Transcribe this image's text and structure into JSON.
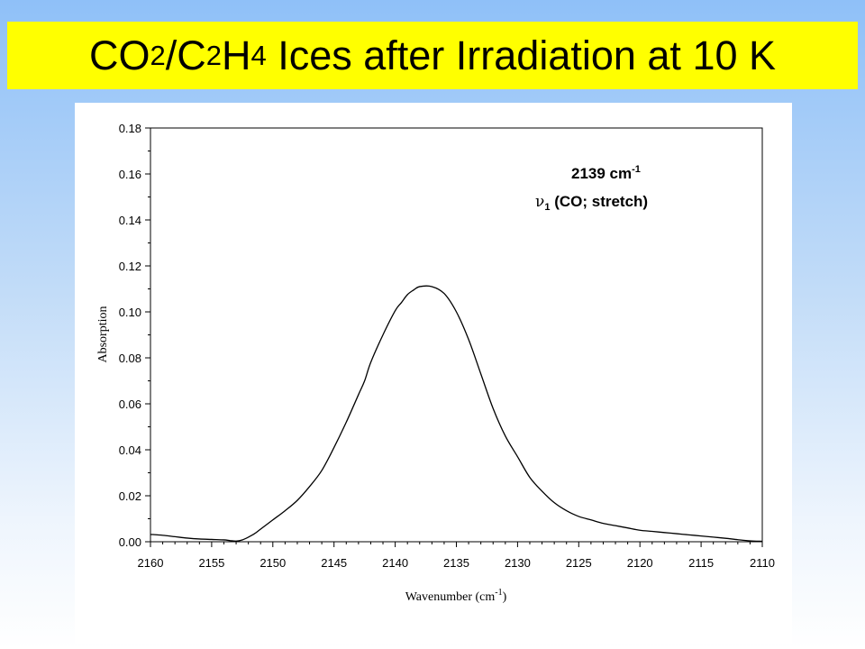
{
  "slide": {
    "title_parts": [
      "CO",
      "2",
      "/C",
      "2",
      "H",
      "4",
      " Ices after Irradiation at 10 K"
    ]
  },
  "chart_data": {
    "type": "line",
    "xlabel": "Wavenumber (cm",
    "xlabel_sup": "-1",
    "xlabel_close": ")",
    "ylabel": "Absorption",
    "xlim": [
      2160,
      2110
    ],
    "ylim": [
      0,
      0.18
    ],
    "x_reversed": true,
    "x_ticks": [
      2160,
      2155,
      2150,
      2145,
      2140,
      2135,
      2130,
      2125,
      2120,
      2115,
      2110
    ],
    "y_ticks": [
      "0.00",
      "0.02",
      "0.04",
      "0.06",
      "0.08",
      "0.10",
      "0.12",
      "0.14",
      "0.16",
      "0.18"
    ],
    "grid": false,
    "annotation": {
      "line1": "2139 cm",
      "line1_sup": "-1",
      "line2_symbol": "ν",
      "line2_sub": "1",
      "line2_text": " (CO; stretch)"
    },
    "series": [
      {
        "color": "#000000",
        "x": [
          2160,
          2159,
          2158,
          2157,
          2156,
          2155,
          2154,
          2153.5,
          2153,
          2152.5,
          2152,
          2151.5,
          2151,
          2150,
          2149,
          2148,
          2147,
          2146,
          2145,
          2144,
          2143,
          2142.5,
          2142,
          2141,
          2140,
          2139.5,
          2139,
          2138.5,
          2138,
          2137,
          2136,
          2135,
          2134,
          2133,
          2132,
          2131,
          2130,
          2129,
          2128,
          2127,
          2126,
          2125,
          2124,
          2123,
          2122,
          2121,
          2120,
          2119,
          2118,
          2117,
          2116,
          2115,
          2114,
          2113,
          2112,
          2111,
          2110
        ],
        "y": [
          0.0032,
          0.0028,
          0.0022,
          0.0016,
          0.0012,
          0.001,
          0.0008,
          0.0005,
          0.0003,
          0.0008,
          0.002,
          0.0035,
          0.0055,
          0.0095,
          0.0135,
          0.018,
          0.024,
          0.031,
          0.041,
          0.052,
          0.064,
          0.07,
          0.078,
          0.09,
          0.1005,
          0.104,
          0.1075,
          0.1095,
          0.111,
          0.111,
          0.108,
          0.1,
          0.088,
          0.073,
          0.058,
          0.046,
          0.037,
          0.028,
          0.022,
          0.017,
          0.0135,
          0.011,
          0.0095,
          0.008,
          0.007,
          0.006,
          0.005,
          0.0045,
          0.004,
          0.0035,
          0.003,
          0.0025,
          0.002,
          0.0015,
          0.0009,
          0.0004,
          0.0002
        ]
      }
    ]
  }
}
